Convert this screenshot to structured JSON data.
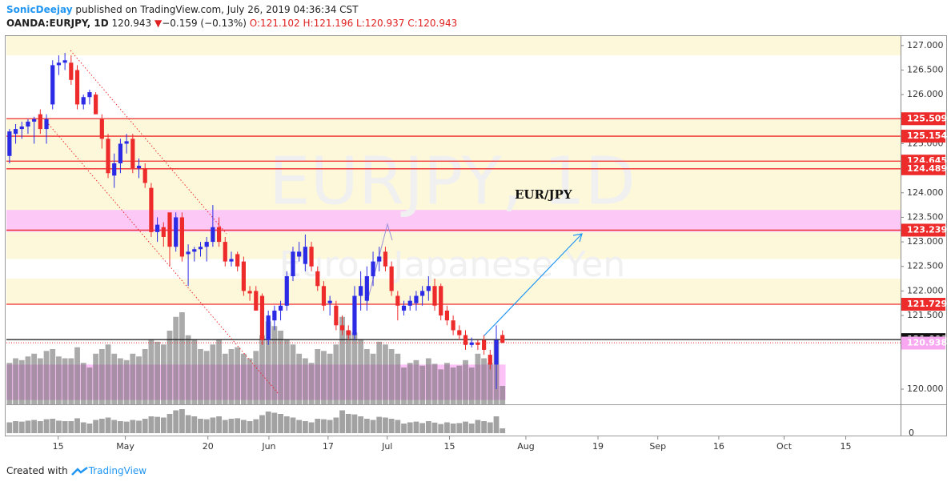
{
  "header": {
    "author": "SonicDeejay",
    "published": "published on TradingView.com, July 26, 2019 04:36:34 CST",
    "symbol": "OANDA:EURJPY, 1D",
    "last": "120.943",
    "arrow": "▼",
    "change": "−0.159 (−0.13%)",
    "open": "O:121.102",
    "high": "H:121.196",
    "low": "L:120.937",
    "close": "C:120.943"
  },
  "footer": {
    "created": "Created with",
    "brand": "TradingView"
  },
  "chart_data": {
    "type": "candlestick",
    "watermark": "EURJPY, 1D",
    "watermark_sub": "Euro / Japanese Yen",
    "annotation": "EUR/JPY",
    "up_color": "#2b2be6",
    "down_color": "#ee2b2b",
    "open": [
      124.75,
      125.2,
      125.3,
      125.35,
      125.45,
      125.6,
      125.3,
      125.8,
      126.6,
      126.65,
      126.65,
      126.5,
      125.8,
      125.95,
      126.0,
      125.5,
      125.1,
      124.35,
      124.6,
      125.0,
      125.1,
      124.5,
      124.5,
      124.1,
      123.2,
      123.3,
      123.6,
      122.9,
      123.5,
      122.75,
      122.8,
      122.85,
      122.9,
      123.0,
      123.3,
      123.0,
      122.6,
      122.75,
      122.6,
      122.0,
      122.0,
      121.9,
      121.0,
      121.4,
      121.6,
      121.7,
      122.3,
      122.7,
      122.55,
      122.9,
      122.4,
      122.1,
      121.75,
      121.7,
      121.3,
      121.2,
      121.1,
      121.9,
      121.8,
      122.3,
      122.6,
      122.8,
      122.5,
      121.9,
      121.6,
      121.7,
      121.75,
      121.9,
      122.0,
      122.1,
      122.1,
      121.6,
      121.4,
      121.2,
      121.1,
      120.9,
      120.95,
      121.0,
      120.7,
      120.5,
      121.102
    ],
    "high": [
      125.3,
      125.4,
      125.45,
      125.5,
      125.55,
      125.7,
      125.6,
      126.7,
      126.8,
      126.85,
      126.8,
      126.6,
      126.0,
      126.1,
      126.05,
      125.6,
      125.2,
      124.8,
      125.1,
      125.2,
      125.2,
      124.7,
      124.6,
      124.2,
      123.5,
      123.4,
      123.6,
      123.6,
      123.6,
      122.95,
      122.9,
      123.0,
      123.1,
      123.75,
      123.5,
      123.1,
      122.8,
      122.8,
      122.7,
      122.1,
      122.1,
      121.95,
      121.6,
      121.7,
      121.8,
      122.4,
      122.9,
      123.0,
      123.15,
      123.0,
      122.5,
      122.2,
      121.9,
      121.8,
      121.5,
      121.3,
      122.1,
      122.4,
      122.5,
      122.8,
      122.9,
      122.9,
      122.6,
      122.0,
      121.8,
      121.9,
      122.0,
      122.1,
      122.3,
      122.25,
      122.15,
      121.7,
      121.5,
      121.3,
      121.2,
      121.05,
      121.0,
      121.1,
      120.8,
      121.3,
      121.196
    ],
    "low": [
      124.6,
      125.0,
      125.1,
      125.2,
      125.0,
      125.2,
      125.0,
      125.7,
      126.4,
      126.5,
      126.2,
      125.7,
      125.7,
      125.8,
      125.6,
      124.9,
      124.3,
      124.1,
      124.4,
      124.8,
      124.4,
      124.3,
      124.1,
      123.1,
      123.0,
      122.9,
      122.5,
      122.8,
      122.6,
      122.1,
      122.6,
      122.7,
      122.6,
      122.9,
      122.9,
      122.5,
      122.5,
      122.4,
      121.9,
      121.8,
      121.6,
      120.9,
      120.9,
      121.2,
      121.4,
      121.6,
      122.2,
      122.6,
      122.4,
      122.4,
      122.0,
      121.6,
      121.5,
      121.2,
      121.1,
      121.0,
      121.0,
      121.6,
      121.6,
      122.1,
      122.4,
      122.4,
      121.9,
      121.4,
      121.5,
      121.6,
      121.6,
      121.7,
      121.8,
      121.6,
      121.4,
      121.3,
      121.1,
      121.0,
      120.8,
      120.85,
      120.8,
      120.7,
      120.4,
      120.0,
      120.937
    ],
    "close": [
      125.25,
      125.3,
      125.35,
      125.45,
      125.5,
      125.3,
      125.5,
      126.6,
      126.65,
      126.7,
      126.3,
      125.8,
      125.95,
      126.05,
      125.6,
      125.1,
      124.4,
      124.6,
      125.0,
      125.05,
      124.5,
      124.55,
      124.2,
      123.2,
      123.35,
      123.1,
      122.9,
      123.5,
      122.7,
      122.8,
      122.85,
      122.9,
      123.0,
      123.3,
      123.0,
      122.6,
      122.65,
      122.5,
      122.0,
      121.95,
      121.6,
      121.0,
      121.5,
      121.6,
      121.7,
      122.3,
      122.8,
      122.8,
      122.9,
      122.5,
      122.1,
      121.7,
      121.8,
      121.3,
      121.2,
      121.1,
      121.9,
      122.1,
      122.3,
      122.6,
      122.7,
      122.5,
      122.0,
      121.7,
      121.7,
      121.8,
      121.9,
      122.0,
      122.1,
      121.7,
      121.5,
      121.4,
      121.2,
      121.1,
      120.9,
      120.95,
      120.9,
      120.8,
      120.5,
      121.0,
      120.943
    ],
    "volume": [
      45,
      50,
      48,
      52,
      55,
      50,
      58,
      60,
      52,
      50,
      50,
      62,
      45,
      40,
      55,
      60,
      65,
      55,
      50,
      48,
      55,
      52,
      60,
      70,
      68,
      65,
      80,
      95,
      100,
      75,
      70,
      60,
      58,
      65,
      70,
      55,
      60,
      62,
      55,
      50,
      58,
      75,
      90,
      85,
      80,
      70,
      65,
      55,
      50,
      45,
      60,
      58,
      55,
      65,
      95,
      80,
      78,
      70,
      60,
      55,
      68,
      65,
      60,
      55,
      40,
      45,
      48,
      42,
      50,
      44,
      38,
      45,
      40,
      42,
      48,
      40,
      55,
      50,
      45,
      70,
      20
    ],
    "volume_lim": [
      0,
      100
    ],
    "volume_ticks": [
      0
    ],
    "xlim": [
      -0.5,
      144.6
    ],
    "xticks": [
      {
        "value": 7.9,
        "label": "15"
      },
      {
        "value": 18.8,
        "label": "May"
      },
      {
        "value": 32.2,
        "label": "20"
      },
      {
        "value": 42.1,
        "label": "Jun"
      },
      {
        "value": 51.7,
        "label": "17"
      },
      {
        "value": 61.3,
        "label": "Jul"
      },
      {
        "value": 71.4,
        "label": "15"
      },
      {
        "value": 83.8,
        "label": "Aug"
      },
      {
        "value": 95.5,
        "label": "19"
      },
      {
        "value": 105.2,
        "label": "Sep"
      },
      {
        "value": 115.1,
        "label": "16"
      },
      {
        "value": 125.7,
        "label": "Oct"
      },
      {
        "value": 135.7,
        "label": "15"
      }
    ],
    "ylim": [
      119.69,
      127.21
    ],
    "yticks": [
      {
        "value": 127,
        "label": "127.000"
      },
      {
        "value": 126.5,
        "label": "126.500"
      },
      {
        "value": 126,
        "label": "126.000"
      },
      {
        "value": 125,
        "label": "125.000"
      },
      {
        "value": 124,
        "label": "124.000"
      },
      {
        "value": 123.5,
        "label": "123.500"
      },
      {
        "value": 123,
        "label": "123.000"
      },
      {
        "value": 122.5,
        "label": "122.500"
      },
      {
        "value": 122,
        "label": "122.000"
      },
      {
        "value": 121.5,
        "label": "121.500"
      },
      {
        "value": 120,
        "label": "120.000"
      }
    ],
    "zones": [
      {
        "from": 126.8,
        "to": 127.21,
        "color": "#fdf8da"
      },
      {
        "from": 123.65,
        "to": 125.509,
        "color": "#fdf8da"
      },
      {
        "from": 123.2,
        "to": 123.65,
        "color": "#fcc8f6"
      },
      {
        "from": 122.65,
        "to": 123.2,
        "color": "#fdf8da"
      },
      {
        "from": 121.73,
        "to": 122.25,
        "color": "#fdf8da"
      },
      {
        "from": 119.78,
        "to": 120.5,
        "color": "#fcc2f8",
        "x_end": 80.5
      }
    ],
    "levels": [
      {
        "value": 125.509,
        "color": "#ee2b2b",
        "line": true
      },
      {
        "value": 125.154,
        "color": "#ee2b2b",
        "line": true
      },
      {
        "value": 124.645,
        "color": "#ee2b2b",
        "line": true
      },
      {
        "value": 124.489,
        "color": "#ee2b2b",
        "line": true
      },
      {
        "value": 123.239,
        "color": "#ee2b2b",
        "line": true
      },
      {
        "value": 121.729,
        "color": "#ee2b2b",
        "line": true
      },
      {
        "value": 121.009,
        "color": "#111111",
        "line": true
      },
      {
        "value": 120.943,
        "color": "#111111",
        "line": false
      },
      {
        "value": 120.938,
        "color": "#f7a8f0",
        "line": false
      }
    ]
  }
}
